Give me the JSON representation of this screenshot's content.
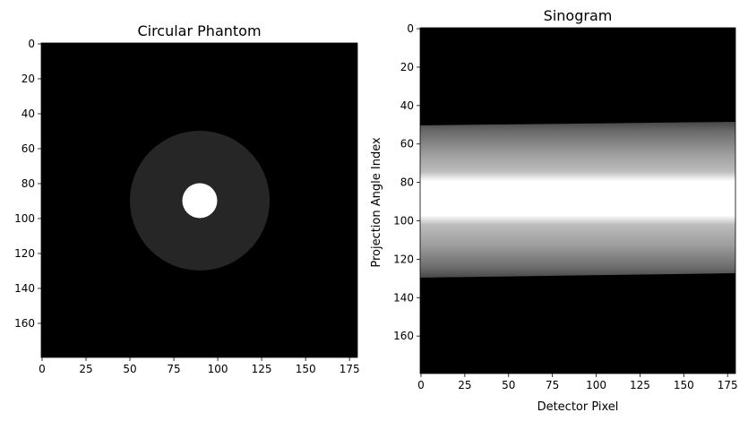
{
  "chart_data": [
    {
      "type": "heatmap",
      "title": "Circular Phantom",
      "xlabel": "",
      "ylabel": "",
      "xlim": [
        0,
        179
      ],
      "ylim": [
        179,
        0
      ],
      "xticks": [
        0,
        25,
        50,
        75,
        100,
        125,
        150,
        175
      ],
      "yticks": [
        0,
        20,
        40,
        60,
        80,
        100,
        120,
        140,
        160
      ],
      "colormap": "gray",
      "background_value": 0,
      "shapes": [
        {
          "shape": "disk",
          "center": [
            90,
            90
          ],
          "radius": 40,
          "value": 0.14
        },
        {
          "shape": "disk",
          "center": [
            90,
            90
          ],
          "radius": 10,
          "value": 1.0
        }
      ]
    },
    {
      "type": "heatmap",
      "title": "Sinogram",
      "xlabel": "Detector Pixel",
      "ylabel": "Projection Angle Index",
      "xlim": [
        0,
        179
      ],
      "ylim": [
        179,
        0
      ],
      "xticks": [
        0,
        25,
        50,
        75,
        100,
        125,
        150,
        175
      ],
      "yticks": [
        0,
        20,
        40,
        60,
        80,
        100,
        120,
        140,
        160
      ],
      "colormap": "gray",
      "band_rows_left": [
        51,
        129
      ],
      "band_rows_right": [
        49,
        127
      ],
      "bright_rows_left": [
        81,
        99
      ],
      "bright_rows_right": [
        79,
        97
      ],
      "bright_value": 1.0,
      "edge_value": 0.28
    }
  ]
}
